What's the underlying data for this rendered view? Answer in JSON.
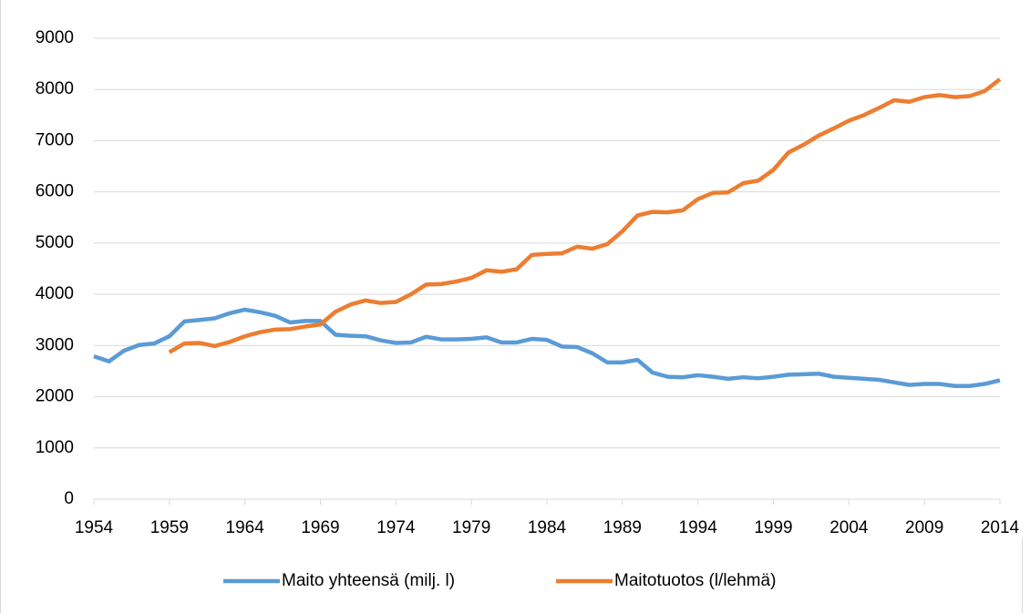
{
  "chart_data": {
    "type": "line",
    "x": [
      1954,
      1955,
      1956,
      1957,
      1958,
      1959,
      1960,
      1961,
      1962,
      1963,
      1964,
      1965,
      1966,
      1967,
      1968,
      1969,
      1970,
      1971,
      1972,
      1973,
      1974,
      1975,
      1976,
      1977,
      1978,
      1979,
      1980,
      1981,
      1982,
      1983,
      1984,
      1985,
      1986,
      1987,
      1988,
      1989,
      1990,
      1991,
      1992,
      1993,
      1994,
      1995,
      1996,
      1997,
      1998,
      1999,
      2000,
      2001,
      2002,
      2003,
      2004,
      2005,
      2006,
      2007,
      2008,
      2009,
      2010,
      2011,
      2012,
      2013,
      2014
    ],
    "series": [
      {
        "name": "Maito yhteensä (milj. l)",
        "color": "#5b9bd5",
        "values": [
          2790,
          2690,
          2900,
          3010,
          3040,
          3180,
          3470,
          3500,
          3530,
          3630,
          3700,
          3650,
          3580,
          3450,
          3480,
          3480,
          3210,
          3190,
          3180,
          3100,
          3050,
          3060,
          3170,
          3120,
          3120,
          3130,
          3160,
          3060,
          3060,
          3130,
          3110,
          2980,
          2970,
          2850,
          2670,
          2670,
          2720,
          2470,
          2390,
          2380,
          2420,
          2390,
          2350,
          2380,
          2360,
          2390,
          2430,
          2440,
          2450,
          2390,
          2370,
          2350,
          2330,
          2280,
          2230,
          2250,
          2250,
          2210,
          2210,
          2250,
          2320
        ]
      },
      {
        "name": "Maitotuotos (l/lehmä)",
        "color": "#ed7d31",
        "values": [
          null,
          null,
          null,
          null,
          null,
          2870,
          3040,
          3050,
          2990,
          3070,
          3180,
          3260,
          3310,
          3320,
          3370,
          3410,
          3660,
          3800,
          3880,
          3830,
          3850,
          4000,
          4190,
          4200,
          4250,
          4320,
          4470,
          4440,
          4490,
          4770,
          4790,
          4800,
          4930,
          4890,
          4980,
          5230,
          5540,
          5610,
          5600,
          5640,
          5860,
          5980,
          5990,
          6170,
          6220,
          6430,
          6770,
          6920,
          7100,
          7240,
          7390,
          7500,
          7640,
          7790,
          7760,
          7850,
          7890,
          7850,
          7870,
          7970,
          8200
        ]
      }
    ],
    "xlim": [
      1954,
      2014
    ],
    "xticks": [
      1954,
      1959,
      1964,
      1969,
      1974,
      1979,
      1984,
      1989,
      1994,
      1999,
      2004,
      2009,
      2014
    ],
    "ylim": [
      0,
      9000
    ],
    "yticks": [
      0,
      1000,
      2000,
      3000,
      4000,
      5000,
      6000,
      7000,
      8000,
      9000
    ],
    "grid": true,
    "legend": "bottom"
  }
}
